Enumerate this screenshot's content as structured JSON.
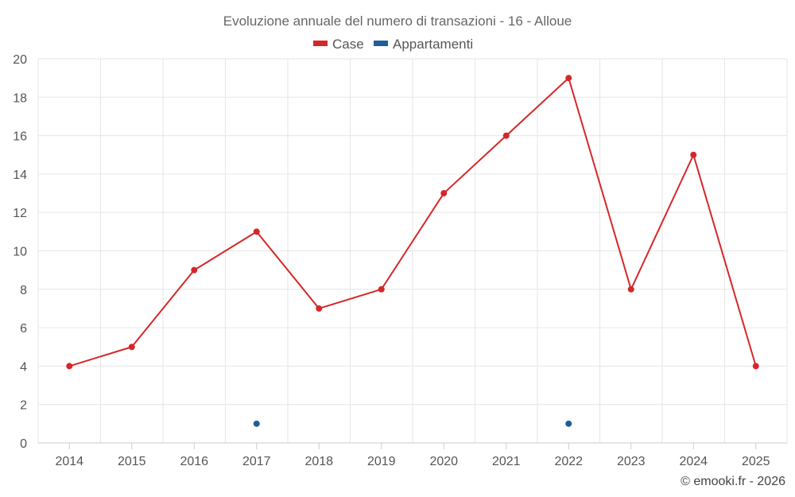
{
  "chart_data": {
    "type": "line",
    "title": "Evoluzione annuale del numero di transazioni - 16 - Alloue",
    "categories": [
      "2014",
      "2015",
      "2016",
      "2017",
      "2018",
      "2019",
      "2020",
      "2021",
      "2022",
      "2023",
      "2024",
      "2025"
    ],
    "ylim": [
      0,
      20
    ],
    "yticks": [
      0,
      2,
      4,
      6,
      8,
      10,
      12,
      14,
      16,
      18,
      20
    ],
    "grid": true,
    "legend_position": "top-center",
    "series": [
      {
        "name": "Case",
        "color": "#d62728",
        "style": "line-markers",
        "values": [
          4,
          5,
          9,
          11,
          7,
          8,
          13,
          16,
          19,
          8,
          15,
          4
        ]
      },
      {
        "name": "Appartamenti",
        "color": "#1f5f99",
        "style": "markers",
        "values": [
          null,
          null,
          null,
          1,
          null,
          null,
          null,
          null,
          1,
          null,
          null,
          null
        ]
      }
    ]
  },
  "credit": "© emooki.fr - 2026"
}
